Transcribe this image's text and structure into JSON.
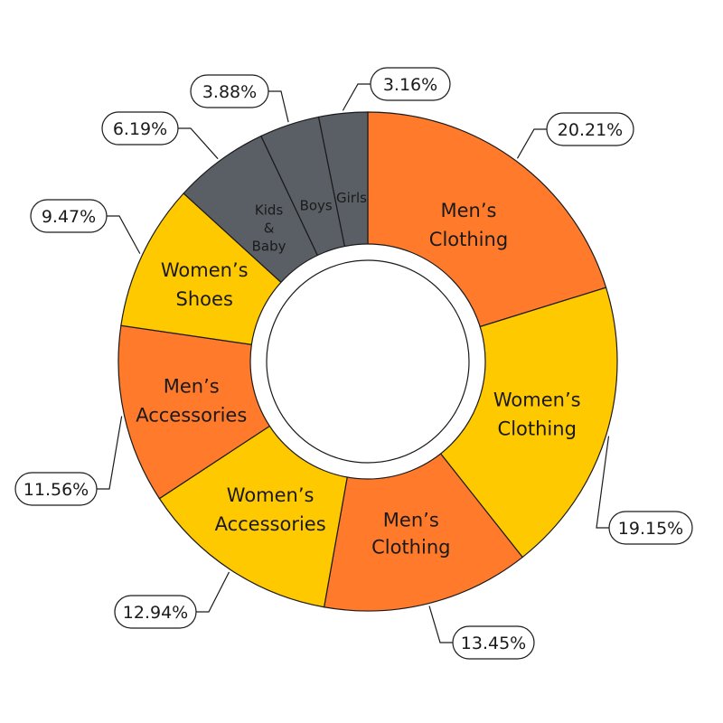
{
  "chart_data": {
    "type": "pie",
    "variant": "donut",
    "title": "",
    "legend": "none",
    "slices": [
      {
        "label_lines": [
          "Men’s",
          "Clothing"
        ],
        "value": 20.21,
        "pct_label": "20.21%",
        "color": "#FF7A2B"
      },
      {
        "label_lines": [
          "Women’s",
          "Clothing"
        ],
        "value": 19.15,
        "pct_label": "19.15%",
        "color": "#FFC900"
      },
      {
        "label_lines": [
          "Men’s",
          "Clothing"
        ],
        "value": 13.45,
        "pct_label": "13.45%",
        "color": "#FF7A2B"
      },
      {
        "label_lines": [
          "Women’s",
          "Accessories"
        ],
        "value": 12.94,
        "pct_label": "12.94%",
        "color": "#FFC900"
      },
      {
        "label_lines": [
          "Men’s",
          "Accessories"
        ],
        "value": 11.56,
        "pct_label": "11.56%",
        "color": "#FF7A2B"
      },
      {
        "label_lines": [
          "Women’s",
          "Shoes"
        ],
        "value": 9.47,
        "pct_label": "9.47%",
        "color": "#FFC900"
      },
      {
        "label_lines": [
          "Kids",
          "&",
          "Baby"
        ],
        "value": 6.19,
        "pct_label": "6.19%",
        "color": "#5A5F66"
      },
      {
        "label_lines": [
          "Boys"
        ],
        "value": 3.88,
        "pct_label": "3.88%",
        "color": "#5A5F66"
      },
      {
        "label_lines": [
          "Girls"
        ],
        "value": 3.16,
        "pct_label": "3.16%",
        "color": "#5A5F66"
      }
    ]
  }
}
